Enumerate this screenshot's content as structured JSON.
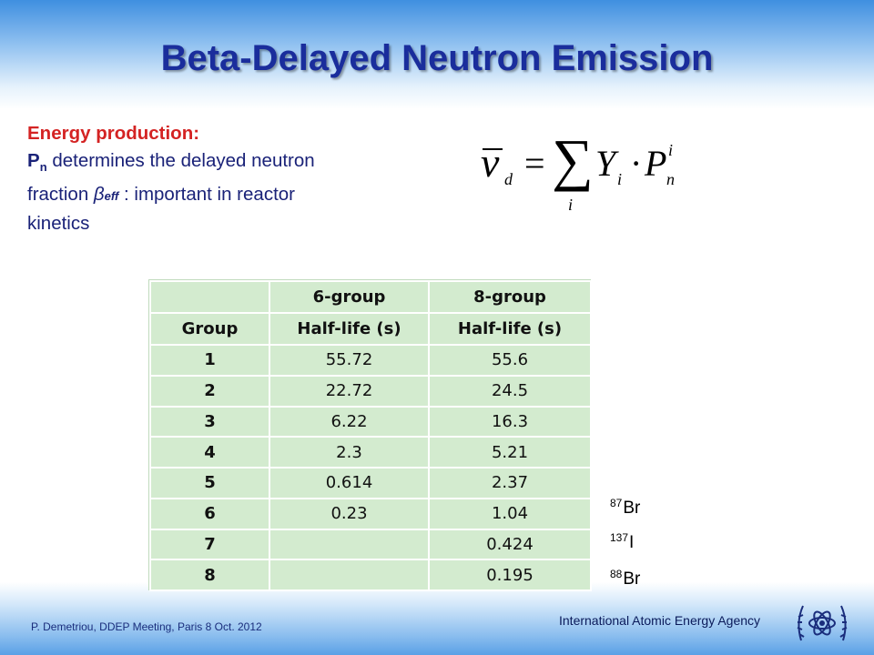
{
  "slide": {
    "title": "Beta-Delayed Neutron Emission",
    "energy": {
      "heading": "Energy production:",
      "line2_symbol": "P",
      "line2_sub": "n",
      "line2_text": " determines the delayed neutron",
      "line3_pre": "fraction ",
      "line3_beta": "β",
      "line3_sub": "eff",
      "line3_post": " : important in reactor",
      "line4": "kinetics"
    },
    "formula": {
      "nu": "ν",
      "nu_sub": "d",
      "equals": "=",
      "sum": "∑",
      "sum_index": "i",
      "Y": "Y",
      "Y_sub": "i",
      "dot": "·",
      "P": "P",
      "P_sup": "i",
      "P_sub": "n"
    },
    "table": {
      "header_row1": [
        "",
        "6-group",
        "8-group"
      ],
      "header_row2": [
        "Group",
        "Half-life (s)",
        "Half-life (s)"
      ],
      "rows": [
        [
          "1",
          "55.72",
          "55.6"
        ],
        [
          "2",
          "22.72",
          "24.5"
        ],
        [
          "3",
          "6.22",
          "16.3"
        ],
        [
          "4",
          "2.3",
          "5.21"
        ],
        [
          "5",
          "0.614",
          "2.37"
        ],
        [
          "6",
          "0.23",
          "1.04"
        ],
        [
          "7",
          "",
          "0.424"
        ],
        [
          "8",
          "",
          "0.195"
        ]
      ]
    },
    "isotopes": [
      {
        "mass": "87",
        "element": "Br"
      },
      {
        "mass": "137",
        "element": "I"
      },
      {
        "mass": "88",
        "element": "Br"
      }
    ],
    "footer": {
      "left": "P. Demetriou, DDEP Meeting, Paris 8 Oct. 2012",
      "right": "International Atomic Energy Agency"
    },
    "colors": {
      "title": "#1a2d9c",
      "heading": "#d42323",
      "body_text": "#1a2278",
      "table_bg": "#d3ebcf"
    }
  }
}
